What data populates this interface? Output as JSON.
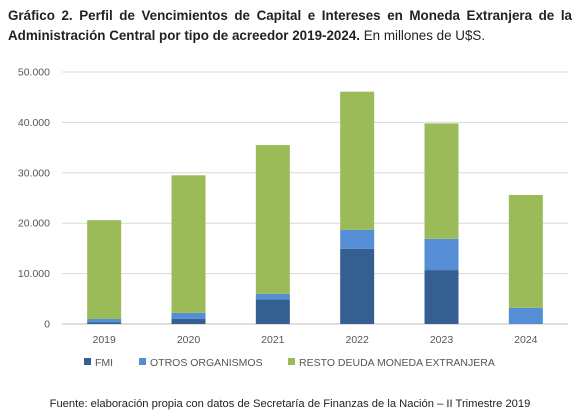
{
  "header": {
    "title_bold": "Gráfico 2. Perfil de Vencimientos de Capital e Intereses en Moneda Extranjera de la Administración Central por tipo de acreedor 2019-2024.",
    "title_rest": " En millones de U$S."
  },
  "footer": {
    "source": "Fuente: elaboración propia con datos de Secretaría de Finanzas de la Nación – II Trimestre 2019"
  },
  "chart_data": {
    "type": "bar",
    "stacked": true,
    "categories": [
      "2019",
      "2020",
      "2021",
      "2022",
      "2023",
      "2024"
    ],
    "series": [
      {
        "name": "FMI",
        "color": "#355F91",
        "values": [
          300,
          1000,
          4900,
          14900,
          10700,
          0
        ]
      },
      {
        "name": "OTROS ORGANISMOS",
        "color": "#558ED5",
        "values": [
          700,
          1200,
          1100,
          3800,
          6200,
          3200
        ]
      },
      {
        "name": "RESTO DEUDA MONEDA EXTRANJERA",
        "color": "#9BBB59",
        "values": [
          19600,
          27300,
          29500,
          27400,
          22900,
          22400
        ]
      }
    ],
    "ylim": [
      0,
      50000
    ],
    "yticks": [
      0,
      10000,
      20000,
      30000,
      40000,
      50000
    ],
    "ytick_labels": [
      "0",
      "10.000",
      "20.000",
      "30.000",
      "40.000",
      "50.000"
    ],
    "grid": true,
    "legend_position": "bottom"
  }
}
